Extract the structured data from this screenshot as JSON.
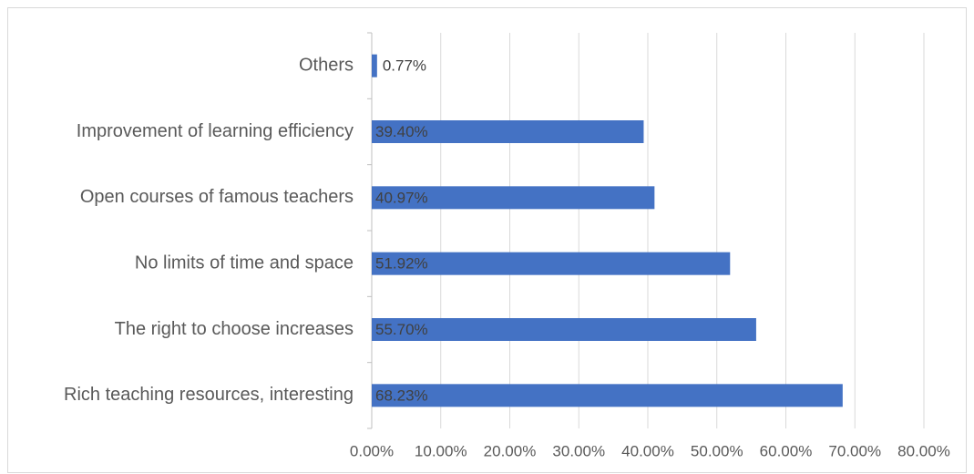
{
  "chart_data": {
    "type": "bar",
    "orientation": "horizontal",
    "categories": [
      "Others",
      "Improvement of learning efficiency",
      "Open courses of famous teachers",
      "No limits of time and space",
      "The right to choose increases",
      "Rich teaching resources, interesting"
    ],
    "values": [
      0.77,
      39.4,
      40.97,
      51.92,
      55.7,
      68.23
    ],
    "value_labels": [
      "0.77%",
      "39.40%",
      "40.97%",
      "51.92%",
      "55.70%",
      "68.23%"
    ],
    "color": "#4472c4",
    "xlim": [
      0,
      80
    ],
    "xticks": [
      {
        "value": 0,
        "label": "0.00%"
      },
      {
        "value": 10,
        "label": "10.00%"
      },
      {
        "value": 20,
        "label": "20.00%"
      },
      {
        "value": 30,
        "label": "30.00%"
      },
      {
        "value": 40,
        "label": "40.00%"
      },
      {
        "value": 50,
        "label": "50.00%"
      },
      {
        "value": 60,
        "label": "60.00%"
      },
      {
        "value": 70,
        "label": "70.00%"
      },
      {
        "value": 80,
        "label": "80.00%"
      }
    ],
    "grid": true
  }
}
